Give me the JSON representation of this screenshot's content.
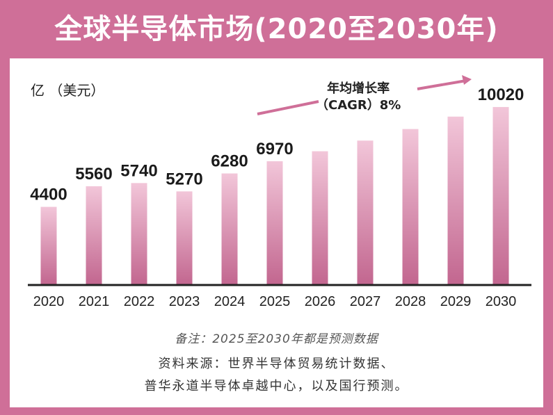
{
  "title": "全球半导体市场(2020至2030年)",
  "unit_label": "亿 （美元）",
  "annotation": {
    "line1": "年均增长率",
    "line2": "（CAGR）8%"
  },
  "note": "备注：2025至2030年都是预测数据",
  "source_line1": "资料来源：世界半导体贸易统计数据、",
  "source_line2": "普华永道半导体卓越中心，以及国行预测。",
  "colors": {
    "frame": "#cf6f98",
    "bar_top": "#f2c6d9",
    "bar_bottom": "#c2668f",
    "arrow": "#cf6f98"
  },
  "chart_data": {
    "type": "bar",
    "title": "全球半导体市场(2020至2030年)",
    "ylabel": "亿（美元）",
    "xlabel": "",
    "categories": [
      "2020",
      "2021",
      "2022",
      "2023",
      "2024",
      "2025",
      "2026",
      "2027",
      "2028",
      "2029",
      "2030"
    ],
    "values": [
      4400,
      5560,
      5740,
      5270,
      6280,
      6970,
      7530,
      8130,
      8780,
      9480,
      10020
    ],
    "data_labels": [
      "4400",
      "5560",
      "5740",
      "5270",
      "6280",
      "6970",
      "",
      "",
      "",
      "",
      "10020"
    ],
    "ylim": [
      0,
      10800
    ],
    "grid": false
  }
}
